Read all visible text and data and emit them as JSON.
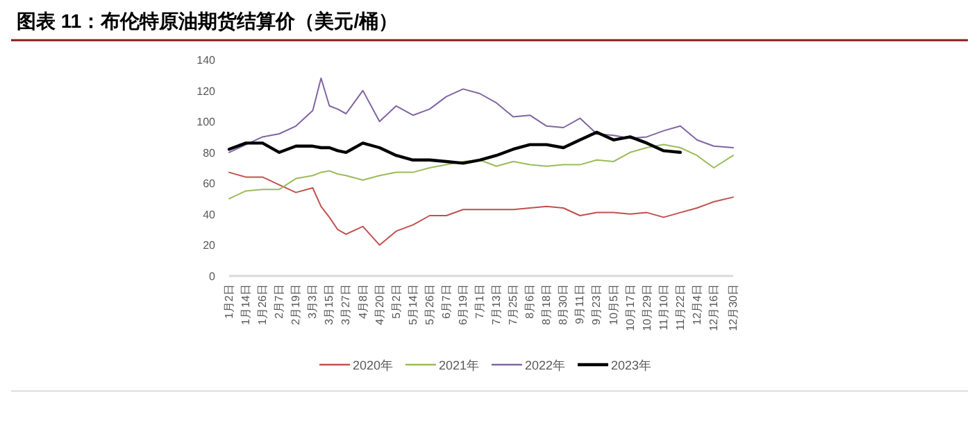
{
  "chart_data": {
    "type": "line",
    "title": "图表 11：布伦特原油期货结算价（美元/桶）",
    "xlim": [
      "--01-02",
      "--12-30"
    ],
    "xticks": [
      {
        "value": "--01-02",
        "label": "1月2日"
      },
      {
        "value": "--01-14",
        "label": "1月14日"
      },
      {
        "value": "--01-26",
        "label": "1月26日"
      },
      {
        "value": "--02-07",
        "label": "2月7日"
      },
      {
        "value": "--02-19",
        "label": "2月19日"
      },
      {
        "value": "--03-03",
        "label": "3月3日"
      },
      {
        "value": "--03-15",
        "label": "3月15日"
      },
      {
        "value": "--03-27",
        "label": "3月27日"
      },
      {
        "value": "--04-08",
        "label": "4月8日"
      },
      {
        "value": "--04-20",
        "label": "4月20日"
      },
      {
        "value": "--05-02",
        "label": "5月2日"
      },
      {
        "value": "--05-14",
        "label": "5月14日"
      },
      {
        "value": "--05-26",
        "label": "5月26日"
      },
      {
        "value": "--06-07",
        "label": "6月7日"
      },
      {
        "value": "--06-19",
        "label": "6月19日"
      },
      {
        "value": "--07-01",
        "label": "7月1日"
      },
      {
        "value": "--07-13",
        "label": "7月13日"
      },
      {
        "value": "--07-25",
        "label": "7月25日"
      },
      {
        "value": "--08-06",
        "label": "8月6日"
      },
      {
        "value": "--08-18",
        "label": "8月18日"
      },
      {
        "value": "--08-30",
        "label": "8月30日"
      },
      {
        "value": "--09-11",
        "label": "9月11日"
      },
      {
        "value": "--09-23",
        "label": "9月23日"
      },
      {
        "value": "--10-05",
        "label": "10月5日"
      },
      {
        "value": "--10-17",
        "label": "10月17日"
      },
      {
        "value": "--10-29",
        "label": "10月29日"
      },
      {
        "value": "--11-10",
        "label": "11月10日"
      },
      {
        "value": "--11-22",
        "label": "11月22日"
      },
      {
        "value": "--12-04",
        "label": "12月4日"
      },
      {
        "value": "--12-16",
        "label": "12月16日"
      },
      {
        "value": "--12-30",
        "label": "12月30日"
      }
    ],
    "ylim": [
      0,
      140
    ],
    "yticks": [
      0,
      20,
      40,
      60,
      80,
      100,
      120,
      140
    ],
    "legend": "bottom",
    "grid": false,
    "marker": "none",
    "x": [
      "--01-02",
      "--01-14",
      "--01-26",
      "--02-07",
      "--02-19",
      "--03-03",
      "--03-09",
      "--03-15",
      "--03-21",
      "--03-27",
      "--04-08",
      "--04-20",
      "--05-02",
      "--05-14",
      "--05-26",
      "--06-07",
      "--06-19",
      "--07-01",
      "--07-13",
      "--07-25",
      "--08-06",
      "--08-18",
      "--08-30",
      "--09-11",
      "--09-23",
      "--10-05",
      "--10-17",
      "--10-29",
      "--11-10",
      "--11-22",
      "--12-04",
      "--12-16",
      "--12-30"
    ],
    "series": [
      {
        "name": "2020年",
        "color": "#c0504d",
        "values": [
          67,
          64,
          64,
          59,
          54,
          57,
          45,
          38,
          30,
          27,
          32,
          20,
          29,
          33,
          39,
          39,
          43,
          43,
          43,
          43,
          44,
          45,
          44,
          39,
          41,
          41,
          40,
          41,
          38,
          41,
          44,
          48,
          51
        ]
      },
      {
        "name": "2021年",
        "color": "#9bbb59",
        "values": [
          50,
          55,
          56,
          56,
          63,
          65,
          67,
          68,
          66,
          65,
          62,
          65,
          67,
          67,
          70,
          72,
          74,
          75,
          71,
          74,
          72,
          71,
          72,
          72,
          75,
          74,
          80,
          83,
          85,
          83,
          78,
          70,
          78
        ]
      },
      {
        "name": "2022年",
        "color": "#8064a2",
        "values": [
          80,
          85,
          90,
          92,
          97,
          107,
          128,
          110,
          108,
          105,
          120,
          100,
          110,
          104,
          108,
          116,
          121,
          118,
          112,
          103,
          104,
          97,
          96,
          102,
          92,
          91,
          89,
          90,
          94,
          97,
          88,
          84,
          83
        ]
      },
      {
        "name": "2023年",
        "color": "#000000",
        "values": [
          82,
          86,
          86,
          80,
          84,
          84,
          83,
          83,
          81,
          80,
          86,
          83,
          78,
          75,
          75,
          74,
          73,
          75,
          78,
          82,
          85,
          85,
          83,
          88,
          93,
          88,
          90,
          86,
          81,
          80,
          null,
          null,
          null
        ]
      }
    ]
  }
}
